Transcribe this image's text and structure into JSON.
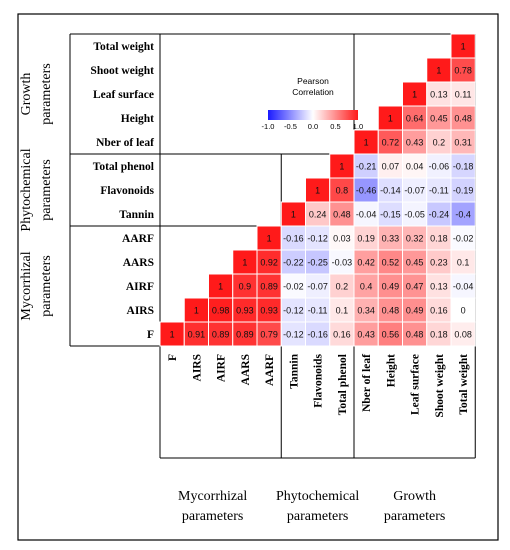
{
  "chart_data": {
    "type": "heatmap",
    "variables": [
      "F",
      "AIRS",
      "AIRF",
      "AARS",
      "AARF",
      "Tannin",
      "Flavonoids",
      "Total phenol",
      "Nber of leaf",
      "Height",
      "Leaf surface",
      "Shoot weight",
      "Total weight"
    ],
    "row_labels_top_to_bottom": [
      "Total weight",
      "Shoot weight",
      "Leaf surface",
      "Height",
      "Nber of leaf",
      "Total phenol",
      "Flavonoids",
      "Tannin",
      "AARF",
      "AARS",
      "AIRF",
      "AIRS",
      "F"
    ],
    "col_labels_left_to_right": [
      "F",
      "AIRS",
      "AIRF",
      "AARS",
      "AARF",
      "Tannin",
      "Flavonoids",
      "Total phenol",
      "Nber of leaf",
      "Height",
      "Leaf surface",
      "Shoot weight",
      "Total weight"
    ],
    "correlations": {
      "F": [
        1,
        0.91,
        0.89,
        0.89,
        0.79,
        -0.12,
        -0.16,
        0.16,
        0.43,
        0.56,
        0.48,
        0.18,
        0.08
      ],
      "AIRS": [
        0.91,
        1,
        0.98,
        0.93,
        0.93,
        -0.12,
        -0.11,
        0.1,
        0.34,
        0.48,
        0.49,
        0.16,
        0
      ],
      "AIRF": [
        0.89,
        0.98,
        1,
        0.9,
        0.89,
        -0.02,
        -0.07,
        0.2,
        0.4,
        0.49,
        0.47,
        0.13,
        -0.04
      ],
      "AARS": [
        0.89,
        0.93,
        0.9,
        1,
        0.92,
        -0.22,
        -0.25,
        -0.03,
        0.42,
        0.52,
        0.45,
        0.23,
        0.1
      ],
      "AARF": [
        0.79,
        0.93,
        0.89,
        0.92,
        1,
        -0.16,
        -0.12,
        0.03,
        0.19,
        0.33,
        0.32,
        0.18,
        -0.02
      ],
      "Tannin": [
        -0.12,
        -0.12,
        -0.02,
        -0.22,
        -0.16,
        1,
        0.24,
        0.48,
        -0.04,
        -0.15,
        -0.05,
        -0.24,
        -0.4
      ],
      "Flavonoids": [
        -0.16,
        -0.11,
        -0.07,
        -0.25,
        -0.12,
        0.24,
        1,
        0.8,
        -0.46,
        -0.14,
        -0.07,
        -0.11,
        -0.19
      ],
      "Total phenol": [
        0.16,
        0.1,
        0.2,
        -0.03,
        0.03,
        0.48,
        0.8,
        1,
        -0.21,
        0.07,
        0.04,
        -0.06,
        -0.18
      ],
      "Nber of leaf": [
        0.43,
        0.34,
        0.4,
        0.42,
        0.19,
        -0.04,
        -0.46,
        -0.21,
        1,
        0.72,
        0.43,
        0.2,
        0.31
      ],
      "Height": [
        0.56,
        0.48,
        0.49,
        0.52,
        0.33,
        -0.15,
        -0.14,
        0.07,
        0.72,
        1,
        0.64,
        0.45,
        0.48
      ],
      "Leaf surface": [
        0.48,
        0.49,
        0.47,
        0.45,
        0.32,
        -0.05,
        -0.07,
        0.04,
        0.43,
        0.64,
        1,
        0.13,
        0.11
      ],
      "Shoot weight": [
        0.18,
        0.16,
        0.13,
        0.23,
        0.18,
        -0.24,
        -0.11,
        -0.06,
        0.2,
        0.45,
        0.13,
        1,
        0.78
      ],
      "Total weight": [
        0.08,
        0,
        -0.04,
        0.1,
        -0.02,
        -0.4,
        -0.19,
        -0.18,
        0.31,
        0.48,
        0.11,
        0.78,
        1
      ]
    },
    "groups": [
      {
        "name_lines": [
          "Mycorrhizal",
          "parameters"
        ],
        "members": [
          "F",
          "AIRS",
          "AIRF",
          "AARS",
          "AARF"
        ]
      },
      {
        "name_lines": [
          "Phytochemical",
          "parameters"
        ],
        "members": [
          "Tannin",
          "Flavonoids",
          "Total phenol"
        ]
      },
      {
        "name_lines": [
          "Growth",
          "parameters"
        ],
        "members": [
          "Nber of leaf",
          "Height",
          "Leaf surface",
          "Shoot weight",
          "Total weight"
        ]
      }
    ],
    "legend": {
      "title_lines": [
        "Pearson",
        "Correlation"
      ],
      "ticks": [
        -1.0,
        -0.5,
        0.0,
        0.5,
        1.0
      ],
      "tick_labels": [
        "-1.0",
        "-0.5",
        "0.0",
        "0.5",
        "1.0"
      ],
      "range": [
        -1,
        1
      ]
    },
    "colors": {
      "negative": "#1a1aff",
      "neutral": "#ffffff",
      "positive": "#ff1a1a",
      "cell_border": "#ffffff"
    }
  }
}
